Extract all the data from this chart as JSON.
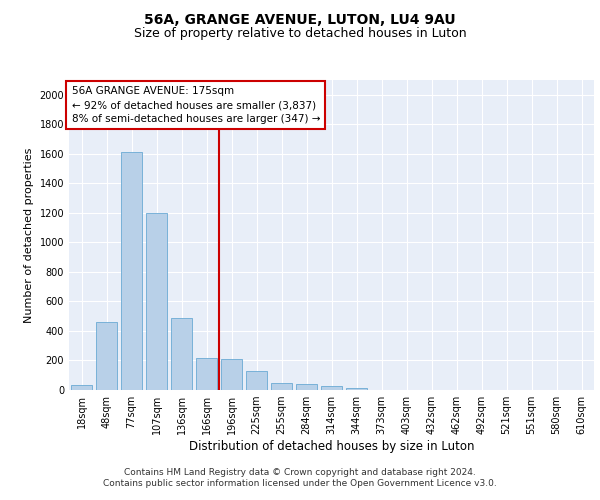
{
  "title1": "56A, GRANGE AVENUE, LUTON, LU4 9AU",
  "title2": "Size of property relative to detached houses in Luton",
  "xlabel": "Distribution of detached houses by size in Luton",
  "ylabel": "Number of detached properties",
  "categories": [
    "18sqm",
    "48sqm",
    "77sqm",
    "107sqm",
    "136sqm",
    "166sqm",
    "196sqm",
    "225sqm",
    "255sqm",
    "284sqm",
    "314sqm",
    "344sqm",
    "373sqm",
    "403sqm",
    "432sqm",
    "462sqm",
    "492sqm",
    "521sqm",
    "551sqm",
    "580sqm",
    "610sqm"
  ],
  "values": [
    35,
    460,
    1610,
    1200,
    490,
    215,
    210,
    130,
    50,
    40,
    25,
    15,
    0,
    0,
    0,
    0,
    0,
    0,
    0,
    0,
    0
  ],
  "bar_color": "#b8d0e8",
  "bar_edge_color": "#6aaad4",
  "vline_x": 5.5,
  "vline_color": "#cc0000",
  "annotation_lines": [
    "56A GRANGE AVENUE: 175sqm",
    "← 92% of detached houses are smaller (3,837)",
    "8% of semi-detached houses are larger (347) →"
  ],
  "annotation_box_color": "#cc0000",
  "footer1": "Contains HM Land Registry data © Crown copyright and database right 2024.",
  "footer2": "Contains public sector information licensed under the Open Government Licence v3.0.",
  "ylim": [
    0,
    2100
  ],
  "yticks": [
    0,
    200,
    400,
    600,
    800,
    1000,
    1200,
    1400,
    1600,
    1800,
    2000
  ],
  "bg_color": "#e8eef8",
  "grid_color": "#ffffff",
  "title1_fontsize": 10,
  "title2_fontsize": 9,
  "xlabel_fontsize": 8.5,
  "ylabel_fontsize": 8,
  "tick_fontsize": 7,
  "annotation_fontsize": 7.5,
  "footer_fontsize": 6.5
}
